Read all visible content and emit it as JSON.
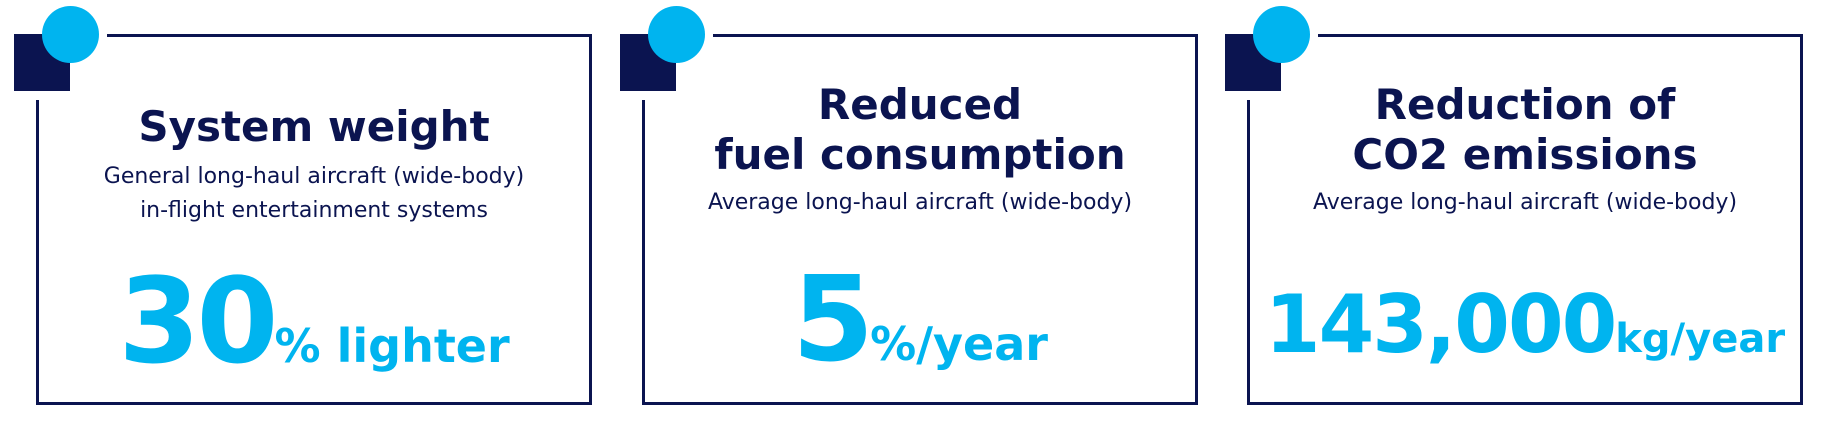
{
  "colors": {
    "navy": "#0b1450",
    "accent": "#00b4ef"
  },
  "cards": [
    {
      "title_lines": [
        "System weight"
      ],
      "subtitle_lines": [
        "General long-haul aircraft (wide-body)",
        "in-flight entertainment systems"
      ],
      "value": "30",
      "unit": "% lighter"
    },
    {
      "title_lines": [
        "Reduced",
        "fuel consumption"
      ],
      "subtitle_lines": [
        "Average long-haul aircraft (wide-body)"
      ],
      "value": "5",
      "unit": "%/year"
    },
    {
      "title_lines": [
        "Reduction of",
        "CO2 emissions"
      ],
      "subtitle_lines": [
        "Average long-haul aircraft (wide-body)"
      ],
      "value": "143,000",
      "unit": "kg/year"
    }
  ]
}
